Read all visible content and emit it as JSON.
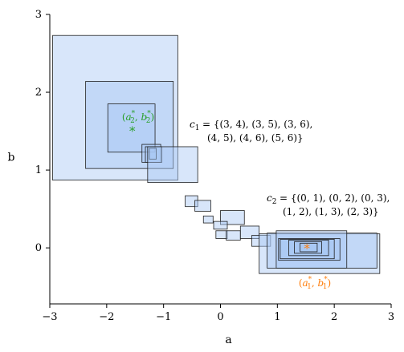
{
  "chart_data": {
    "type": "scatter",
    "xlabel": "a",
    "ylabel": "b",
    "xlim": [
      -3,
      3
    ],
    "ylim": [
      -0.72,
      3
    ],
    "x_ticks": [
      {
        "value": -3,
        "label": "−3"
      },
      {
        "value": -2,
        "label": "−2"
      },
      {
        "value": -1,
        "label": "−1"
      },
      {
        "value": 0,
        "label": "0"
      },
      {
        "value": 1,
        "label": "1"
      },
      {
        "value": 2,
        "label": "2"
      },
      {
        "value": 3,
        "label": "3"
      }
    ],
    "y_ticks": [
      {
        "value": 0,
        "label": "0"
      },
      {
        "value": 1,
        "label": "1"
      },
      {
        "value": 2,
        "label": "2"
      },
      {
        "value": 3,
        "label": "3"
      }
    ],
    "grid": false,
    "colors": {
      "box_fill": "#a9c8f3",
      "box_stroke": "#1f1f1f",
      "star_green": "#2ca02c",
      "star_orange": "#ff7f0e",
      "label_green": "#2ca02c",
      "label_orange": "#ff7f0e"
    },
    "rectangles": [
      {
        "x0": -2.95,
        "x1": -0.75,
        "y0": 0.87,
        "y1": 2.73
      },
      {
        "x0": -2.37,
        "x1": -0.83,
        "y0": 1.02,
        "y1": 2.14
      },
      {
        "x0": -1.98,
        "x1": -1.15,
        "y0": 1.23,
        "y1": 1.85
      },
      {
        "x0": -1.38,
        "x1": -1.05,
        "y0": 1.1,
        "y1": 1.33
      },
      {
        "x0": -1.32,
        "x1": -1.03,
        "y0": 1.1,
        "y1": 1.3
      },
      {
        "x0": -1.25,
        "x1": -1.13,
        "y0": 1.14,
        "y1": 1.28
      },
      {
        "x0": -1.28,
        "x1": -0.4,
        "y0": 0.84,
        "y1": 1.3
      },
      {
        "x0": -0.62,
        "x1": -0.4,
        "y0": 0.53,
        "y1": 0.67
      },
      {
        "x0": -0.45,
        "x1": -0.17,
        "y0": 0.47,
        "y1": 0.61
      },
      {
        "x0": -0.3,
        "x1": -0.13,
        "y0": 0.32,
        "y1": 0.41
      },
      {
        "x0": 0.0,
        "x1": 0.42,
        "y0": 0.3,
        "y1": 0.48
      },
      {
        "x0": -0.12,
        "x1": 0.12,
        "y0": 0.24,
        "y1": 0.34
      },
      {
        "x0": -0.08,
        "x1": 0.12,
        "y0": 0.12,
        "y1": 0.22
      },
      {
        "x0": 0.1,
        "x1": 0.35,
        "y0": 0.1,
        "y1": 0.22
      },
      {
        "x0": 0.35,
        "x1": 0.68,
        "y0": 0.12,
        "y1": 0.28
      },
      {
        "x0": 0.55,
        "x1": 0.88,
        "y0": 0.02,
        "y1": 0.16
      },
      {
        "x0": 0.68,
        "x1": 2.8,
        "y0": -0.33,
        "y1": 0.18
      },
      {
        "x0": 0.82,
        "x1": 2.75,
        "y0": -0.26,
        "y1": 0.19
      },
      {
        "x0": 0.98,
        "x1": 2.22,
        "y0": -0.26,
        "y1": 0.22
      },
      {
        "x0": 1.02,
        "x1": 2.1,
        "y0": -0.16,
        "y1": 0.12
      },
      {
        "x0": 1.05,
        "x1": 2.0,
        "y0": -0.14,
        "y1": 0.11
      },
      {
        "x0": 1.2,
        "x1": 1.9,
        "y0": -0.1,
        "y1": 0.1
      },
      {
        "x0": 1.3,
        "x1": 1.78,
        "y0": -0.07,
        "y1": 0.08
      },
      {
        "x0": 1.4,
        "x1": 1.7,
        "y0": -0.05,
        "y1": 0.06
      }
    ],
    "stars": [
      {
        "name": "green-star",
        "x": -1.55,
        "y": 1.51,
        "color": "#2ca02c"
      },
      {
        "name": "orange-star",
        "x": 1.52,
        "y": 0.0,
        "color": "#ff7f0e"
      }
    ],
    "annotations": {
      "green_point": {
        "html": "(<tspan font-style='italic'>a</tspan><tspan font-size='9' dy='-6'>*</tspan><tspan font-size='9' dy='9' dx='-6'>2</tspan><tspan dy='-3'>, </tspan><tspan font-style='italic'>b</tspan><tspan font-size='9' dy='-6'>*</tspan><tspan font-size='9' dy='9' dx='-6'>2</tspan><tspan dy='-3'>)</tspan>"
      },
      "orange_point": {
        "html": "(<tspan font-style='italic'>a</tspan><tspan font-size='9' dy='-6'>*</tspan><tspan font-size='9' dy='9' dx='-6'>1</tspan><tspan dy='-3'>, </tspan><tspan font-style='italic'>b</tspan><tspan font-size='9' dy='-6'>*</tspan><tspan font-size='9' dy='9' dx='-6'>1</tspan><tspan dy='-3'>)</tspan>"
      },
      "c1_line1": "= {(3, 4), (3, 5), (3, 6),",
      "c1_line2": "(4, 5), (4, 6), (5, 6)}",
      "c2_line1": "= {(0, 1), (0, 2), (0, 3),",
      "c2_line2": "(1, 2), (1, 3), (2, 3)}",
      "c1_symbol": "c",
      "c1_sub": "1",
      "c2_symbol": "c",
      "c2_sub": "2"
    }
  }
}
